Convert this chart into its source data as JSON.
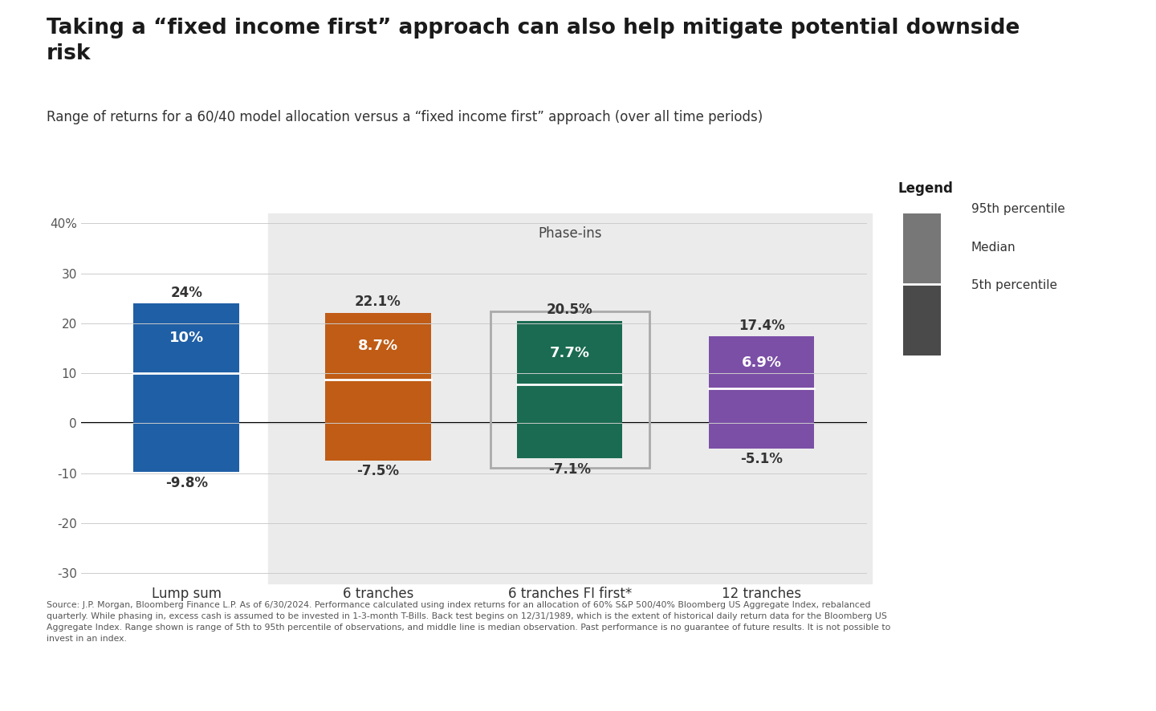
{
  "title": "Taking a “fixed income first” approach can also help mitigate potential downside\nrisk",
  "subtitle": "Range of returns for a 60/40 model allocation versus a “fixed income first” approach (over all time periods)",
  "categories": [
    "Lump sum",
    "6 tranches",
    "6 tranches FI first*",
    "12 tranches"
  ],
  "p5": [
    -9.8,
    -7.5,
    -7.1,
    -5.1
  ],
  "median": [
    10.0,
    8.7,
    7.7,
    6.9
  ],
  "p95": [
    24.0,
    22.1,
    20.5,
    17.4
  ],
  "bar_colors": [
    "#1F5FA6",
    "#C05C15",
    "#1A6B51",
    "#7B4FA6"
  ],
  "phase_ins_label": "Phase-ins",
  "fi_first_index": 2,
  "ylim": [
    -32,
    42
  ],
  "yticks": [
    -30,
    -20,
    -10,
    0,
    10,
    20,
    30,
    40
  ],
  "ytick_labels": [
    "-30",
    "-20",
    "-10",
    "0",
    "10",
    "20",
    "30",
    "40%"
  ],
  "background_color": "#FFFFFF",
  "phase_ins_bg": "#EBEBEB",
  "fi_first_box_color": "#AAAAAA",
  "legend_title": "Legend",
  "legend_items": [
    "95th percentile",
    "Median",
    "5th percentile"
  ],
  "median_line_color": "#FFFFFF",
  "source_text": "Source: J.P. Morgan, Bloomberg Finance L.P. As of 6/30/2024. Performance calculated using index returns for an allocation of 60% S&P 500/40% Bloomberg US Aggregate Index, rebalanced\nquarterly. While phasing in, excess cash is assumed to be invested in 1-3-month T-Bills. Back test begins on 12/31/1989, which is the extent of historical daily return data for the Bloomberg US\nAggregate Index. Range shown is range of 5th to 95th percentile of observations, and middle line is median observation. Past performance is no guarantee of future results. It is not possible to\ninvest in an index.",
  "bar_width": 0.55
}
